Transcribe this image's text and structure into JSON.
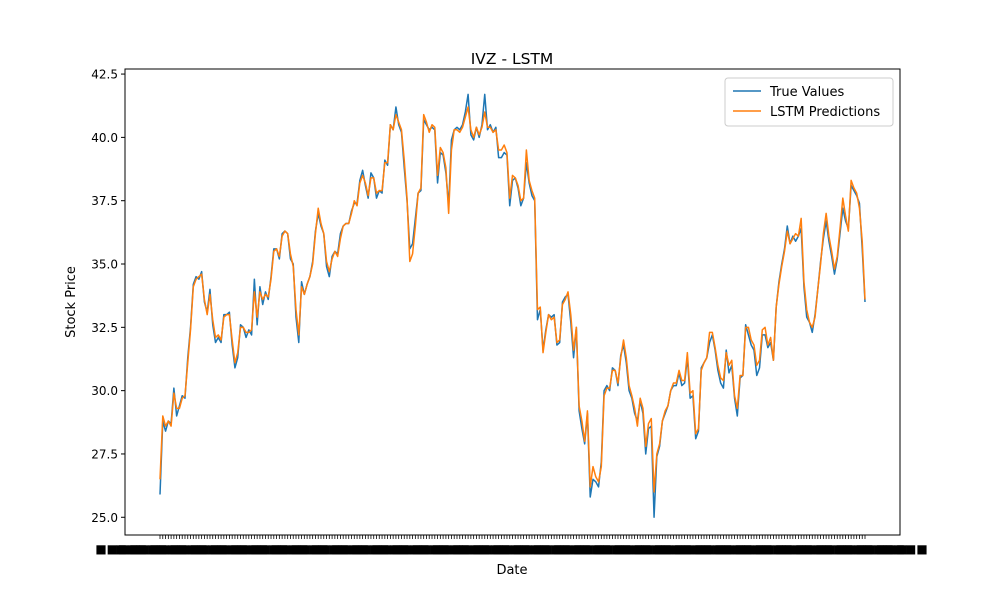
{
  "chart_data": {
    "type": "line",
    "title": "IVZ - LSTM",
    "xlabel": "Date",
    "ylabel": "Stock Price",
    "ylim": [
      24.3,
      42.7
    ],
    "yticks": [
      "25.0",
      "27.5",
      "30.0",
      "32.5",
      "35.0",
      "37.5",
      "40.0",
      "42.5"
    ],
    "legend_position": "top-right",
    "grid": false,
    "x_tick_labels": "dense overlapping date labels (illegible)",
    "series": [
      {
        "name": "True Values",
        "color": "#1f77b4",
        "values": [
          25.9,
          28.8,
          28.4,
          28.8,
          28.7,
          30.1,
          29.0,
          29.4,
          29.8,
          29.7,
          31.3,
          32.5,
          34.2,
          34.5,
          34.4,
          34.7,
          33.5,
          33.1,
          34.0,
          32.6,
          31.9,
          32.1,
          31.9,
          33.0,
          33.0,
          33.1,
          31.8,
          30.9,
          31.3,
          32.6,
          32.5,
          32.1,
          32.4,
          32.2,
          34.4,
          32.6,
          34.1,
          33.4,
          33.9,
          33.6,
          34.5,
          35.6,
          35.6,
          35.2,
          36.2,
          36.3,
          36.2,
          35.2,
          35.0,
          32.9,
          31.9,
          34.3,
          33.8,
          34.2,
          34.5,
          35.1,
          36.3,
          37.0,
          36.5,
          36.2,
          34.9,
          34.5,
          35.3,
          35.5,
          35.4,
          36.2,
          36.5,
          36.6,
          36.6,
          37.1,
          37.4,
          37.4,
          38.3,
          38.7,
          38.1,
          37.6,
          38.6,
          38.4,
          37.6,
          37.9,
          37.8,
          39.1,
          38.9,
          40.5,
          40.3,
          41.2,
          40.5,
          40.2,
          38.8,
          37.5,
          35.6,
          35.8,
          36.8,
          37.8,
          37.9,
          40.7,
          40.5,
          40.3,
          40.4,
          40.3,
          38.2,
          39.4,
          39.3,
          38.6,
          37.3,
          39.9,
          40.3,
          40.4,
          40.3,
          40.5,
          41.0,
          41.7,
          40.1,
          39.9,
          40.4,
          40.0,
          40.5,
          41.7,
          40.3,
          40.5,
          40.2,
          40.4,
          39.2,
          39.2,
          39.4,
          39.3,
          37.3,
          38.3,
          38.4,
          38.0,
          37.3,
          37.6,
          39.0,
          38.2,
          37.7,
          37.5,
          32.8,
          33.2,
          31.6,
          32.4,
          33.0,
          32.9,
          33.0,
          31.8,
          31.9,
          33.5,
          33.7,
          33.8,
          32.7,
          31.3,
          32.5,
          29.2,
          28.5,
          27.9,
          29.1,
          25.8,
          26.5,
          26.4,
          26.2,
          27.2,
          30.0,
          30.2,
          30.0,
          30.9,
          30.8,
          30.2,
          31.4,
          31.8,
          31.1,
          30.0,
          29.7,
          29.1,
          28.8,
          29.6,
          29.1,
          27.5,
          28.5,
          28.6,
          25.0,
          27.4,
          27.8,
          28.8,
          29.1,
          29.4,
          30.0,
          30.2,
          30.2,
          30.7,
          30.2,
          30.3,
          31.3,
          29.7,
          29.8,
          28.1,
          28.4,
          30.9,
          31.1,
          31.3,
          31.9,
          32.2,
          31.6,
          30.8,
          30.3,
          30.1,
          31.6,
          30.7,
          31.0,
          29.7,
          29.0,
          30.5,
          30.6,
          32.6,
          32.2,
          31.8,
          31.6,
          30.6,
          30.9,
          32.2,
          32.2,
          31.7,
          31.9,
          31.2,
          33.3,
          34.3,
          35.0,
          35.6,
          36.5,
          35.8,
          36.1,
          35.9,
          36.1,
          36.4,
          34.1,
          32.9,
          32.7,
          32.3,
          33.0,
          34.0,
          35.1,
          36.0,
          36.7,
          35.9,
          35.3,
          34.6,
          35.2,
          36.2,
          37.2,
          36.7,
          36.4,
          38.1,
          37.9,
          37.7,
          37.4,
          35.6,
          33.5
        ]
      },
      {
        "name": "LSTM Predictions",
        "color": "#ff7f0e",
        "values": [
          26.5,
          29.0,
          28.6,
          28.8,
          28.6,
          29.9,
          29.3,
          29.3,
          29.7,
          29.8,
          31.1,
          32.4,
          34.1,
          34.4,
          34.5,
          34.6,
          33.6,
          33.0,
          33.8,
          32.8,
          32.1,
          32.2,
          32.0,
          32.9,
          33.0,
          33.0,
          32.0,
          31.1,
          31.5,
          32.5,
          32.5,
          32.3,
          32.3,
          32.4,
          33.9,
          32.9,
          33.9,
          33.6,
          33.8,
          33.7,
          34.4,
          35.5,
          35.6,
          35.3,
          36.1,
          36.3,
          36.2,
          35.4,
          34.9,
          33.2,
          32.2,
          34.1,
          33.8,
          34.2,
          34.5,
          35.0,
          36.2,
          37.2,
          36.6,
          36.2,
          35.1,
          34.7,
          35.2,
          35.5,
          35.3,
          36.0,
          36.5,
          36.6,
          36.6,
          37.0,
          37.5,
          37.3,
          38.2,
          38.5,
          38.2,
          37.7,
          38.4,
          38.4,
          37.8,
          37.9,
          37.9,
          39.0,
          39.0,
          40.5,
          40.3,
          40.9,
          40.6,
          40.3,
          39.1,
          37.6,
          35.1,
          35.4,
          36.5,
          37.8,
          38.0,
          40.9,
          40.6,
          40.2,
          40.5,
          40.4,
          38.5,
          39.6,
          39.4,
          38.8,
          37.0,
          39.5,
          40.3,
          40.3,
          40.2,
          40.4,
          40.8,
          41.2,
          40.3,
          40.0,
          40.4,
          40.1,
          40.4,
          41.0,
          40.4,
          40.4,
          40.2,
          40.3,
          39.5,
          39.5,
          39.7,
          39.4,
          37.6,
          38.5,
          38.4,
          38.1,
          37.5,
          37.6,
          39.5,
          38.3,
          37.9,
          37.6,
          33.2,
          33.3,
          31.5,
          32.3,
          33.0,
          32.8,
          32.9,
          31.9,
          32.0,
          33.4,
          33.6,
          33.9,
          33.0,
          31.6,
          32.5,
          29.4,
          28.8,
          28.0,
          29.2,
          26.2,
          27.0,
          26.6,
          26.4,
          27.0,
          29.8,
          30.1,
          30.1,
          30.8,
          30.8,
          30.3,
          31.3,
          32.0,
          31.3,
          30.2,
          29.8,
          29.3,
          28.6,
          29.7,
          29.3,
          27.8,
          28.7,
          28.9,
          26.0,
          27.5,
          27.9,
          28.8,
          29.2,
          29.4,
          30.0,
          30.3,
          30.3,
          30.8,
          30.4,
          30.4,
          31.5,
          29.9,
          30.0,
          28.3,
          28.5,
          30.8,
          31.1,
          31.3,
          32.3,
          32.3,
          31.7,
          31.0,
          30.5,
          30.4,
          31.5,
          31.0,
          31.2,
          29.8,
          29.3,
          30.6,
          30.6,
          32.5,
          32.5,
          32.0,
          31.8,
          31.0,
          31.2,
          32.4,
          32.5,
          31.8,
          32.1,
          31.2,
          33.3,
          34.2,
          34.9,
          35.5,
          36.3,
          35.8,
          36.0,
          36.2,
          36.1,
          36.8,
          34.3,
          33.2,
          32.7,
          32.5,
          32.9,
          34.0,
          35.0,
          36.2,
          37.0,
          36.1,
          35.5,
          34.8,
          35.3,
          36.4,
          37.6,
          36.9,
          36.3,
          38.3,
          38.0,
          37.8,
          37.2,
          35.9,
          33.6
        ]
      }
    ]
  }
}
